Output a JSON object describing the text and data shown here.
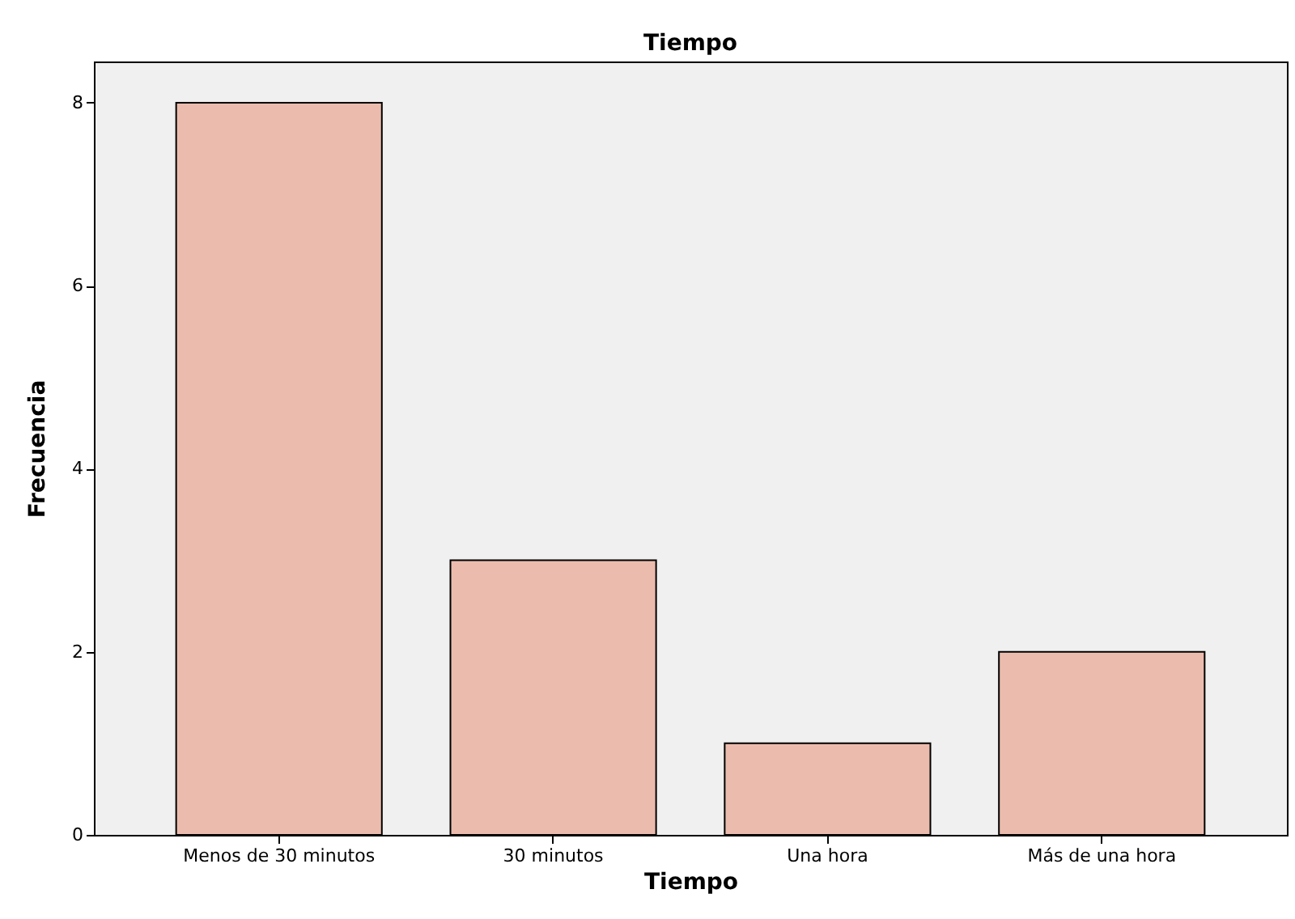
{
  "chart_data": {
    "type": "bar",
    "title": "Tiempo",
    "xlabel": "Tiempo",
    "ylabel": "Frecuencia",
    "categories": [
      "Menos de 30 minutos",
      "30 minutos",
      "Una hora",
      "Más de una hora"
    ],
    "values": [
      8,
      3,
      1,
      2
    ],
    "color": "#ebbcad",
    "ylim": [
      0,
      8.45
    ],
    "yticks": [
      0,
      2,
      4,
      6,
      8
    ],
    "grid": false
  }
}
